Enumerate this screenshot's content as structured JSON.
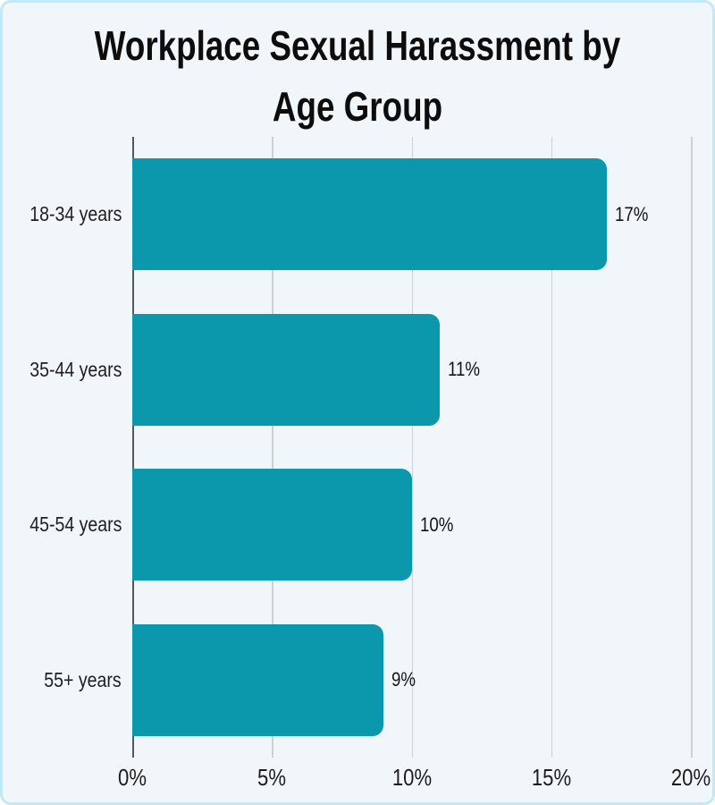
{
  "chart_data": {
    "type": "bar",
    "orientation": "horizontal",
    "title": "Workplace Sexual Harassment by Age Group",
    "title_lines": [
      "Workplace Sexual Harassment by",
      "Age Group"
    ],
    "categories": [
      "18-34 years",
      "35-44 years",
      "45-54 years",
      "55+ years"
    ],
    "values": [
      17,
      11,
      10,
      9
    ],
    "value_labels": [
      "17%",
      "11%",
      "10%",
      "9%"
    ],
    "xlabel": "",
    "ylabel": "",
    "xlim": [
      0,
      20
    ],
    "x_ticks": [
      "0%",
      "5%",
      "10%",
      "15%",
      "20%"
    ],
    "x_tick_values": [
      0,
      5,
      10,
      15,
      20
    ],
    "grid": true,
    "legend": false,
    "colors": {
      "bar": "#0b98ad",
      "card_background": "#f1f6fb",
      "card_border": "#c3e8f6",
      "gridline": "#cdd1d6",
      "axis_line": "#55595d",
      "text": "#1f1f1f"
    }
  }
}
